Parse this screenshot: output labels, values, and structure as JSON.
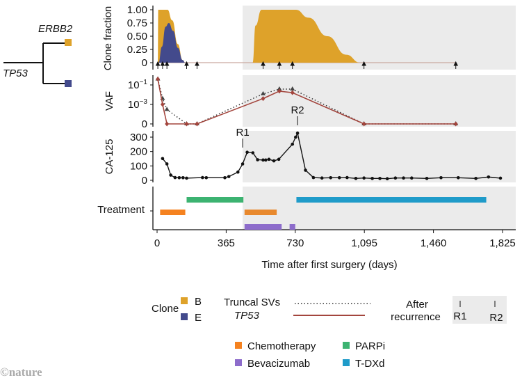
{
  "tree": {
    "gene_top": "ERBB2",
    "gene_root": "TP53"
  },
  "colors": {
    "clone_B": "#dea22a",
    "clone_E": "#434a8c",
    "tp53": "#a3453d",
    "truncal": "#333333",
    "background_after": "#ebebeb",
    "chemotherapy": "#f58220",
    "chemotherapy_2": "#e8892e",
    "parpi": "#3cb371",
    "bevacizumab": "#8d6ccb",
    "tdxd": "#1f9bc9"
  },
  "chart_data": [
    {
      "type": "area",
      "title": "",
      "ylabel": "Clone fraction",
      "ylim": [
        0,
        1
      ],
      "yticks": [
        "1.00",
        "0.75",
        "0.50",
        "0.25",
        "0"
      ],
      "ytick_values": [
        1,
        0.75,
        0.5,
        0.25,
        0
      ],
      "series": [
        {
          "name": "B",
          "points": [
            [
              4,
              0
            ],
            [
              6,
              1
            ],
            [
              55,
              1
            ],
            [
              80,
              0.8
            ],
            [
              110,
              0.35
            ],
            [
              135,
              0.05
            ],
            [
              149,
              0
            ],
            [
              505,
              0
            ],
            [
              520,
              0.7
            ],
            [
              552,
              1
            ],
            [
              733,
              1
            ],
            [
              800,
              0.85
            ],
            [
              900,
              0.5
            ],
            [
              1000,
              0.15
            ],
            [
              1072,
              0
            ]
          ]
        },
        {
          "name": "E",
          "points": [
            [
              8,
              0
            ],
            [
              25,
              0.3
            ],
            [
              45,
              0.68
            ],
            [
              62,
              0.75
            ],
            [
              85,
              0.6
            ],
            [
              110,
              0.28
            ],
            [
              135,
              0.05
            ],
            [
              149,
              0
            ]
          ]
        }
      ],
      "sample_days": [
        4,
        29,
        52,
        156,
        211,
        560,
        646,
        715,
        1093,
        1578
      ]
    },
    {
      "type": "line",
      "ylabel": "VAF",
      "yscale": "log with zero",
      "yticks": [
        {
          "base": "10",
          "exp": "−1",
          "value": 0.1
        },
        {
          "base": "10",
          "exp": "−3",
          "value": 0.001
        },
        {
          "base": "0",
          "exp": "",
          "value": 0
        }
      ],
      "series": [
        {
          "name": "Truncal SVs",
          "style": "dotted",
          "marker": "triangle",
          "points": [
            [
              4,
              0.4
            ],
            [
              29,
              0.004
            ],
            [
              52,
              0.0003
            ],
            [
              156,
              0
            ],
            [
              211,
              0
            ],
            [
              560,
              0.012
            ],
            [
              646,
              0.037
            ],
            [
              715,
              0.037
            ],
            [
              1093,
              0
            ],
            [
              1578,
              0
            ]
          ]
        },
        {
          "name": "TP53",
          "style": "solid",
          "marker": "diamond",
          "points": [
            [
              4,
              0.4
            ],
            [
              29,
              0.001
            ],
            [
              52,
              0
            ],
            [
              156,
              0
            ],
            [
              211,
              0
            ],
            [
              560,
              0.004
            ],
            [
              646,
              0.023
            ],
            [
              715,
              0.016
            ],
            [
              1093,
              0
            ],
            [
              1578,
              0
            ]
          ]
        }
      ]
    },
    {
      "type": "line",
      "ylabel": "CA-125",
      "ylim": [
        0,
        340
      ],
      "yticks": [
        "300",
        "200",
        "100",
        "0"
      ],
      "ytick_values": [
        300,
        200,
        100,
        0
      ],
      "points": [
        [
          29,
          151
        ],
        [
          52,
          114
        ],
        [
          72,
          36
        ],
        [
          95,
          19
        ],
        [
          117,
          18
        ],
        [
          137,
          18
        ],
        [
          156,
          15
        ],
        [
          240,
          19
        ],
        [
          260,
          18
        ],
        [
          358,
          18
        ],
        [
          379,
          26
        ],
        [
          427,
          57
        ],
        [
          452,
          114
        ],
        [
          476,
          195
        ],
        [
          506,
          191
        ],
        [
          531,
          143
        ],
        [
          560,
          141
        ],
        [
          574,
          141
        ],
        [
          591,
          146
        ],
        [
          617,
          135
        ],
        [
          643,
          146
        ],
        [
          715,
          251
        ],
        [
          732,
          300
        ],
        [
          742,
          328
        ],
        [
          784,
          70
        ],
        [
          826,
          19
        ],
        [
          871,
          16
        ],
        [
          917,
          18
        ],
        [
          963,
          18
        ],
        [
          1004,
          19
        ],
        [
          1050,
          13
        ],
        [
          1093,
          16
        ],
        [
          1137,
          13
        ],
        [
          1177,
          13
        ],
        [
          1216,
          11
        ],
        [
          1259,
          16
        ],
        [
          1302,
          16
        ],
        [
          1345,
          16
        ],
        [
          1425,
          13
        ],
        [
          1500,
          18
        ],
        [
          1591,
          18
        ],
        [
          1684,
          13
        ],
        [
          1751,
          23
        ],
        [
          1814,
          15
        ]
      ],
      "annotations": [
        {
          "label": "R1",
          "day": 452
        },
        {
          "label": "R2",
          "day": 742
        }
      ]
    },
    {
      "type": "gantt",
      "ylabel": "Treatment",
      "bars": [
        {
          "name": "PARPi",
          "row": 0,
          "start": 156,
          "end": 456,
          "color": "#3cb371"
        },
        {
          "name": "T-DXd",
          "row": 0,
          "start": 736,
          "end": 1739,
          "color": "#1f9bc9"
        },
        {
          "name": "Chemotherapy",
          "row": 1,
          "start": 16,
          "end": 149,
          "color": "#f58220"
        },
        {
          "name": "Chemotherapy",
          "row": 1,
          "start": 462,
          "end": 632,
          "color": "#e8892e"
        },
        {
          "name": "Bevacizumab",
          "row": 2,
          "start": 462,
          "end": 658,
          "color": "#8d6ccb"
        },
        {
          "name": "Bevacizumab",
          "row": 2,
          "start": 700,
          "end": 730,
          "color": "#8d6ccb"
        }
      ]
    }
  ],
  "xaxis": {
    "label": "Time after first surgery (days)",
    "xlim": [
      0,
      1825
    ],
    "ticks": [
      "0",
      "365",
      "730",
      "1,095",
      "1,460",
      "1,825"
    ],
    "tick_values": [
      0,
      365,
      730,
      1095,
      1460,
      1825
    ],
    "after_recurrence_start": 452
  },
  "legend": {
    "clone_title": "Clone",
    "clone_B": "B",
    "clone_E": "E",
    "truncal": "Truncal SVs",
    "tp53": "TP53",
    "after_1": "After",
    "after_2": "recurrence",
    "r1": "R1",
    "r2": "R2",
    "chemotherapy": "Chemotherapy",
    "parpi": "PARPi",
    "bevacizumab": "Bevacizumab",
    "tdxd": "T-DXd"
  },
  "watermark": "©nature"
}
